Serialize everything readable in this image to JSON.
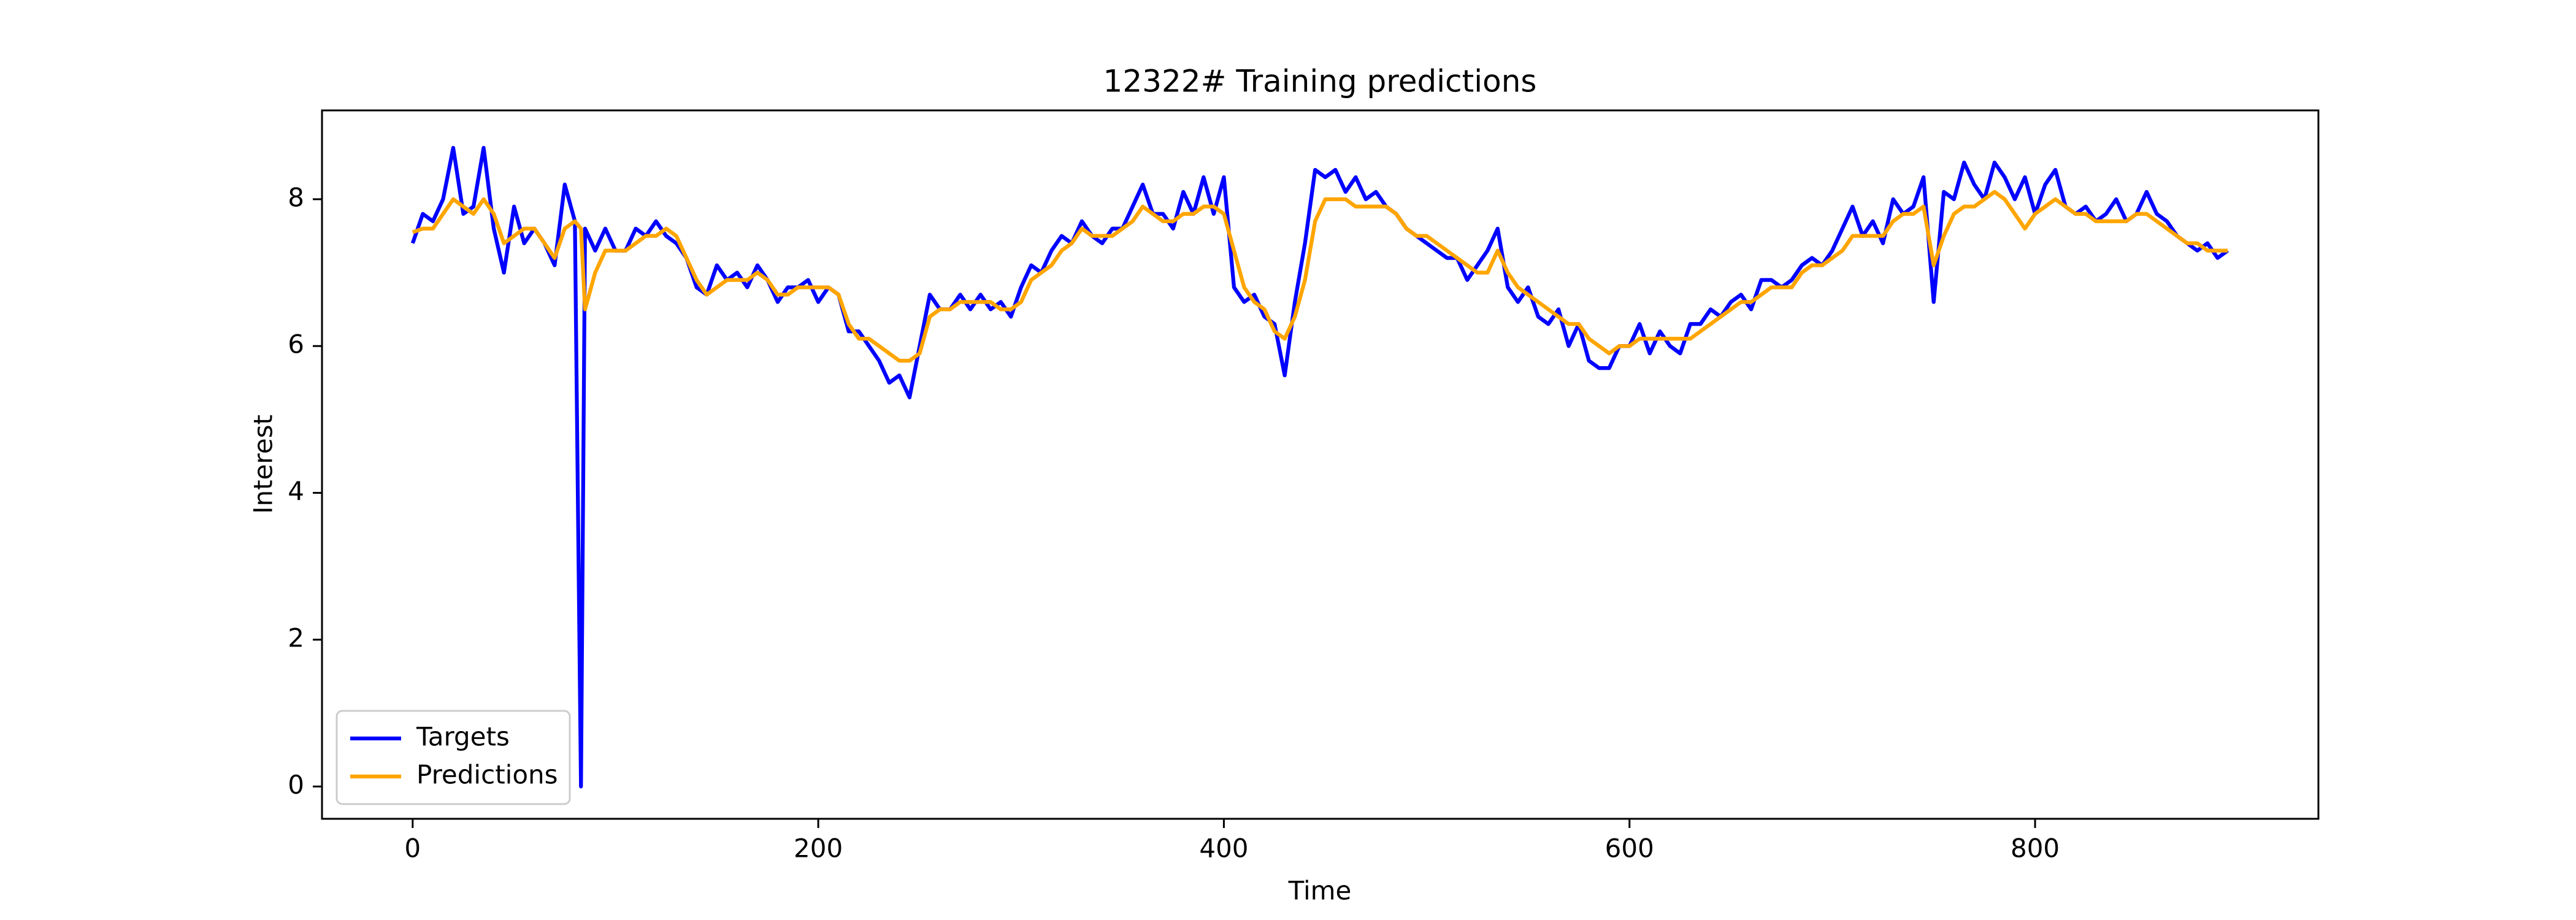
{
  "chart_data": {
    "type": "line",
    "title": "12322# Training predictions",
    "x_label": "Time",
    "y_label": "Interest",
    "x": [
      0,
      5,
      10,
      15,
      20,
      25,
      30,
      35,
      40,
      45,
      50,
      55,
      60,
      65,
      70,
      75,
      80,
      83,
      85,
      90,
      95,
      100,
      105,
      110,
      115,
      120,
      125,
      130,
      135,
      140,
      145,
      150,
      155,
      160,
      165,
      170,
      175,
      180,
      185,
      190,
      195,
      200,
      205,
      210,
      215,
      220,
      225,
      230,
      235,
      240,
      245,
      250,
      255,
      260,
      265,
      270,
      275,
      280,
      285,
      290,
      295,
      300,
      305,
      310,
      315,
      320,
      325,
      330,
      335,
      340,
      345,
      350,
      355,
      360,
      365,
      370,
      375,
      380,
      385,
      390,
      395,
      400,
      405,
      410,
      415,
      420,
      425,
      430,
      435,
      440,
      445,
      450,
      455,
      460,
      465,
      470,
      475,
      480,
      485,
      490,
      495,
      500,
      505,
      510,
      515,
      520,
      525,
      530,
      535,
      540,
      545,
      550,
      555,
      560,
      565,
      570,
      575,
      580,
      585,
      590,
      595,
      600,
      605,
      610,
      615,
      620,
      625,
      630,
      635,
      640,
      645,
      650,
      655,
      660,
      665,
      670,
      675,
      680,
      685,
      690,
      695,
      700,
      705,
      710,
      715,
      720,
      725,
      730,
      735,
      740,
      745,
      750,
      755,
      760,
      765,
      770,
      775,
      780,
      785,
      790,
      795,
      800,
      805,
      810,
      815,
      820,
      825,
      830,
      835,
      840,
      845,
      850,
      855,
      860,
      865,
      870,
      875,
      880,
      885,
      890,
      895
    ],
    "series": [
      {
        "name": "Targets",
        "color": "#0000ff",
        "values": [
          7.4,
          7.8,
          7.7,
          8.0,
          8.7,
          7.8,
          7.9,
          8.7,
          7.6,
          7.0,
          7.9,
          7.4,
          7.6,
          7.4,
          7.1,
          8.2,
          7.7,
          0.0,
          7.6,
          7.3,
          7.6,
          7.3,
          7.3,
          7.6,
          7.5,
          7.7,
          7.5,
          7.4,
          7.2,
          6.8,
          6.7,
          7.1,
          6.9,
          7.0,
          6.8,
          7.1,
          6.9,
          6.6,
          6.8,
          6.8,
          6.9,
          6.6,
          6.8,
          6.7,
          6.2,
          6.2,
          6.0,
          5.8,
          5.5,
          5.6,
          5.3,
          6.0,
          6.7,
          6.5,
          6.5,
          6.7,
          6.5,
          6.7,
          6.5,
          6.6,
          6.4,
          6.8,
          7.1,
          7.0,
          7.3,
          7.5,
          7.4,
          7.7,
          7.5,
          7.4,
          7.6,
          7.6,
          7.9,
          8.2,
          7.8,
          7.8,
          7.6,
          8.1,
          7.8,
          8.3,
          7.8,
          8.3,
          6.8,
          6.6,
          6.7,
          6.4,
          6.3,
          5.6,
          6.6,
          7.4,
          8.4,
          8.3,
          8.4,
          8.1,
          8.3,
          8.0,
          8.1,
          7.9,
          7.8,
          7.6,
          7.5,
          7.4,
          7.3,
          7.2,
          7.2,
          6.9,
          7.1,
          7.3,
          7.6,
          6.8,
          6.6,
          6.8,
          6.4,
          6.3,
          6.5,
          6.0,
          6.3,
          5.8,
          5.7,
          5.7,
          6.0,
          6.0,
          6.3,
          5.9,
          6.2,
          6.0,
          5.9,
          6.3,
          6.3,
          6.5,
          6.4,
          6.6,
          6.7,
          6.5,
          6.9,
          6.9,
          6.8,
          6.9,
          7.1,
          7.2,
          7.1,
          7.3,
          7.6,
          7.9,
          7.5,
          7.7,
          7.4,
          8.0,
          7.8,
          7.9,
          8.3,
          6.6,
          8.1,
          8.0,
          8.5,
          8.2,
          8.0,
          8.5,
          8.3,
          8.0,
          8.3,
          7.8,
          8.2,
          8.4,
          7.9,
          7.8,
          7.9,
          7.7,
          7.8,
          8.0,
          7.7,
          7.8,
          8.1,
          7.8,
          7.7,
          7.5,
          7.4,
          7.3,
          7.4,
          7.2,
          7.3
        ]
      },
      {
        "name": "Predictions",
        "color": "#ffa500",
        "values": [
          7.55,
          7.6,
          7.6,
          7.8,
          8.0,
          7.9,
          7.8,
          8.0,
          7.8,
          7.4,
          7.5,
          7.6,
          7.6,
          7.4,
          7.2,
          7.6,
          7.7,
          7.6,
          6.5,
          7.0,
          7.3,
          7.3,
          7.3,
          7.4,
          7.5,
          7.5,
          7.6,
          7.5,
          7.2,
          6.9,
          6.7,
          6.8,
          6.9,
          6.9,
          6.9,
          7.0,
          6.9,
          6.7,
          6.7,
          6.8,
          6.8,
          6.8,
          6.8,
          6.7,
          6.3,
          6.1,
          6.1,
          6.0,
          5.9,
          5.8,
          5.8,
          5.9,
          6.4,
          6.5,
          6.5,
          6.6,
          6.6,
          6.6,
          6.6,
          6.5,
          6.5,
          6.6,
          6.9,
          7.0,
          7.1,
          7.3,
          7.4,
          7.6,
          7.5,
          7.5,
          7.5,
          7.6,
          7.7,
          7.9,
          7.8,
          7.7,
          7.7,
          7.8,
          7.8,
          7.9,
          7.9,
          7.8,
          7.3,
          6.8,
          6.6,
          6.5,
          6.2,
          6.1,
          6.4,
          6.9,
          7.7,
          8.0,
          8.0,
          8.0,
          7.9,
          7.9,
          7.9,
          7.9,
          7.8,
          7.6,
          7.5,
          7.5,
          7.4,
          7.3,
          7.2,
          7.1,
          7.0,
          7.0,
          7.3,
          7.0,
          6.8,
          6.7,
          6.6,
          6.5,
          6.4,
          6.3,
          6.3,
          6.1,
          6.0,
          5.9,
          6.0,
          6.0,
          6.1,
          6.1,
          6.1,
          6.1,
          6.1,
          6.1,
          6.2,
          6.3,
          6.4,
          6.5,
          6.6,
          6.6,
          6.7,
          6.8,
          6.8,
          6.8,
          7.0,
          7.1,
          7.1,
          7.2,
          7.3,
          7.5,
          7.5,
          7.5,
          7.5,
          7.7,
          7.8,
          7.8,
          7.9,
          7.1,
          7.5,
          7.8,
          7.9,
          7.9,
          8.0,
          8.1,
          8.0,
          7.8,
          7.6,
          7.8,
          7.9,
          8.0,
          7.9,
          7.8,
          7.8,
          7.7,
          7.7,
          7.7,
          7.7,
          7.8,
          7.8,
          7.7,
          7.6,
          7.5,
          7.4,
          7.4,
          7.3,
          7.3,
          7.3
        ]
      }
    ],
    "xlim": [
      -44.7,
      939.7
    ],
    "ylim": [
      -0.44,
      9.21
    ],
    "xticks": [
      0,
      200,
      400,
      600,
      800
    ],
    "yticks": [
      0,
      2,
      4,
      6,
      8
    ],
    "legend": "lower left"
  }
}
